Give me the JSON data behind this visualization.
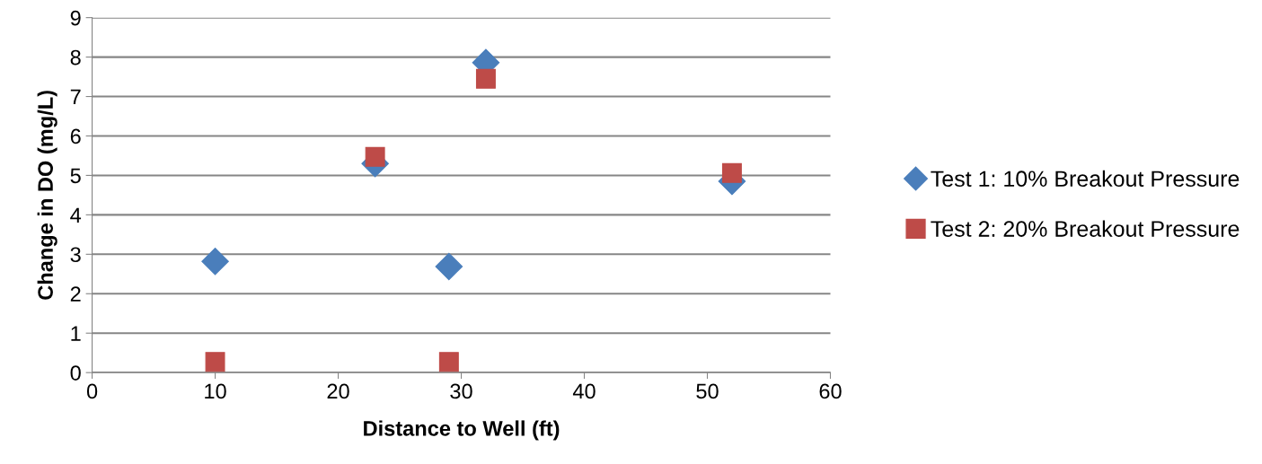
{
  "chart_data": {
    "type": "scatter",
    "xlabel": "Distance to Well (ft)",
    "ylabel": "Change in DO (mg/L)",
    "xlim": [
      0,
      60
    ],
    "xticks": [
      0,
      10,
      20,
      30,
      40,
      50,
      60
    ],
    "ylim": [
      0,
      9
    ],
    "yticks": [
      0,
      1,
      2,
      3,
      4,
      5,
      6,
      7,
      8,
      9
    ],
    "grid": "y",
    "legend": "right",
    "series": [
      {
        "name": "Test 1: 10% Breakout Pressure",
        "color": "#4a7ebb",
        "marker": "diamond",
        "x": [
          10,
          23,
          29,
          32,
          52
        ],
        "values": [
          2.82,
          5.3,
          2.69,
          7.86,
          4.85
        ]
      },
      {
        "name": "Test 2: 20% Breakout Pressure",
        "color": "#be4b48",
        "marker": "square",
        "x": [
          10,
          23,
          29,
          32,
          52
        ],
        "values": [
          0.27,
          5.47,
          0.27,
          7.45,
          5.06
        ]
      }
    ]
  }
}
